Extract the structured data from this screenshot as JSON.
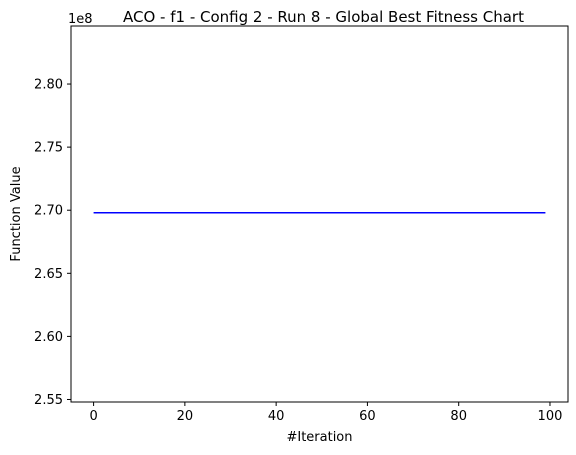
{
  "chart_data": {
    "type": "line",
    "title": "ACO - f1 - Config 2 - Run 8 - Global Best Fitness Chart",
    "xlabel": "#Iteration",
    "ylabel": "Function Value",
    "y_offset_label": "1e8",
    "xlim": [
      -4.95,
      103.95
    ],
    "ylim": [
      2.548,
      2.846
    ],
    "x_ticks": [
      0,
      20,
      40,
      60,
      80,
      100
    ],
    "x_tick_labels": [
      "0",
      "20",
      "40",
      "60",
      "80",
      "100"
    ],
    "y_ticks": [
      2.55,
      2.6,
      2.65,
      2.7,
      2.75,
      2.8
    ],
    "y_tick_labels": [
      "2.55",
      "2.60",
      "2.65",
      "2.70",
      "2.75",
      "2.80"
    ],
    "grid": false,
    "series": [
      {
        "color": "#0000ff",
        "x": [
          0,
          99
        ],
        "y": [
          2.698,
          2.698
        ]
      }
    ]
  }
}
